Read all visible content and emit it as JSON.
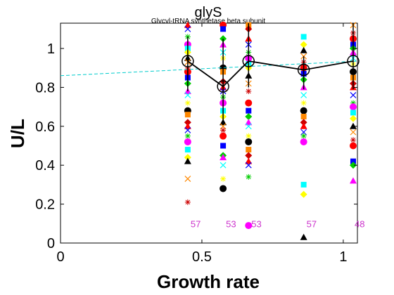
{
  "chart_data": {
    "type": "scatter",
    "title": "glyS",
    "subtitle": "Glycyl-tRNA synthetase beta subunit",
    "xlabel": "Growth rate",
    "ylabel": "U/L",
    "xlim": [
      0,
      1.05
    ],
    "ylim": [
      0,
      1.13
    ],
    "xticks": [
      "0",
      "0.5",
      "1"
    ],
    "yticks": [
      "0",
      "0.2",
      "0.4",
      "0.6",
      "0.8",
      "1"
    ],
    "grid": false,
    "trend_line": {
      "color": "#00cccc",
      "style": "dashed",
      "x": [
        0,
        1.05
      ],
      "y": [
        0.86,
        0.935
      ]
    },
    "mean_series": {
      "color": "#000000",
      "x": [
        0.45,
        0.575,
        0.665,
        0.86,
        1.035
      ],
      "y": [
        0.935,
        0.805,
        0.935,
        0.89,
        0.935
      ],
      "err_low": [
        0.78,
        0.63,
        0.8,
        0.79,
        0.79
      ],
      "err_high": [
        1.06,
        1.05,
        1.13,
        0.96,
        1.13
      ]
    },
    "count_labels": {
      "color": "#cc33cc",
      "y": 0.1,
      "items": [
        {
          "x": 0.46,
          "text": "57"
        },
        {
          "x": 0.585,
          "text": "53"
        },
        {
          "x": 0.675,
          "text": "53"
        },
        {
          "x": 0.87,
          "text": "57"
        },
        {
          "x": 1.04,
          "text": "48"
        }
      ]
    },
    "points": [
      {
        "x": 0.45,
        "y": [
          1.12,
          1.1,
          1.06,
          1.02,
          1.0,
          0.98,
          0.95,
          0.93,
          0.9,
          0.88,
          0.85,
          0.82,
          0.78,
          0.76,
          0.72,
          0.68,
          0.66,
          0.62,
          0.6,
          0.58,
          0.55,
          0.52,
          0.48,
          0.44,
          0.42,
          0.33,
          0.21
        ]
      },
      {
        "x": 0.575,
        "y": [
          1.12,
          1.1,
          1.05,
          1.02,
          0.98,
          0.95,
          0.9,
          0.88,
          0.83,
          0.8,
          0.78,
          0.75,
          0.72,
          0.68,
          0.65,
          0.62,
          0.6,
          0.58,
          0.55,
          0.5,
          0.45,
          0.44,
          0.4,
          0.33,
          0.28
        ]
      },
      {
        "x": 0.665,
        "y": [
          1.12,
          1.1,
          1.05,
          1.02,
          0.98,
          0.95,
          0.92,
          0.9,
          0.86,
          0.82,
          0.78,
          0.72,
          0.68,
          0.65,
          0.62,
          0.6,
          0.55,
          0.52,
          0.48,
          0.45,
          0.42,
          0.4,
          0.34,
          0.09
        ]
      },
      {
        "x": 0.86,
        "y": [
          1.06,
          1.02,
          0.99,
          0.96,
          0.93,
          0.9,
          0.87,
          0.84,
          0.8,
          0.76,
          0.72,
          0.68,
          0.65,
          0.62,
          0.6,
          0.57,
          0.55,
          0.52,
          0.3,
          0.25,
          0.03
        ]
      },
      {
        "x": 1.035,
        "y": [
          1.12,
          1.08,
          1.05,
          1.02,
          1.0,
          0.98,
          0.95,
          0.92,
          0.88,
          0.85,
          0.82,
          0.8,
          0.76,
          0.72,
          0.7,
          0.67,
          0.64,
          0.6,
          0.57,
          0.53,
          0.5,
          0.42,
          0.4,
          0.32
        ]
      }
    ],
    "marker_colors": [
      "#ff0000",
      "#0000ff",
      "#00cc00",
      "#ff00ff",
      "#00ffff",
      "#ffff00",
      "#000000",
      "#ff8800",
      "#cc0000"
    ],
    "marker_shapes": [
      "circle",
      "square",
      "diamond",
      "triangle",
      "x",
      "star"
    ]
  }
}
